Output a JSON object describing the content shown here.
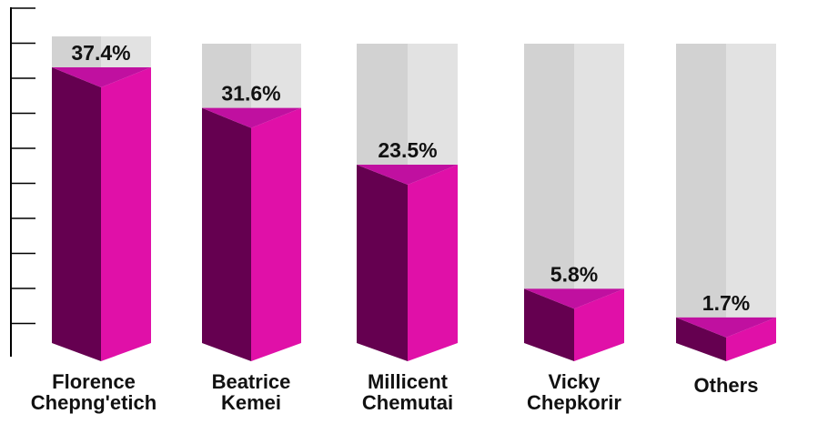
{
  "chart_data": {
    "type": "bar",
    "categories": [
      [
        "Florence",
        "Chepng'etich"
      ],
      [
        "Beatrice",
        "Kemei"
      ],
      [
        "Millicent",
        "Chemutai"
      ],
      [
        "Vicky",
        "Chepkorir"
      ],
      [
        "Others"
      ]
    ],
    "values": [
      37.4,
      31.6,
      23.5,
      5.8,
      1.7
    ],
    "value_labels": [
      "37.4%",
      "31.6%",
      "23.5%",
      "5.8%",
      "1.7%"
    ],
    "title": "",
    "xlabel": "",
    "ylabel": "",
    "grid": false,
    "legend": "none",
    "colors": {
      "front_face": "#e010a8",
      "side_face": "#650050",
      "top_face": "#c010a0",
      "background_bar": "#e2e2e2",
      "background_bar_side": "#d2d2d2",
      "axis": "#000000"
    }
  }
}
